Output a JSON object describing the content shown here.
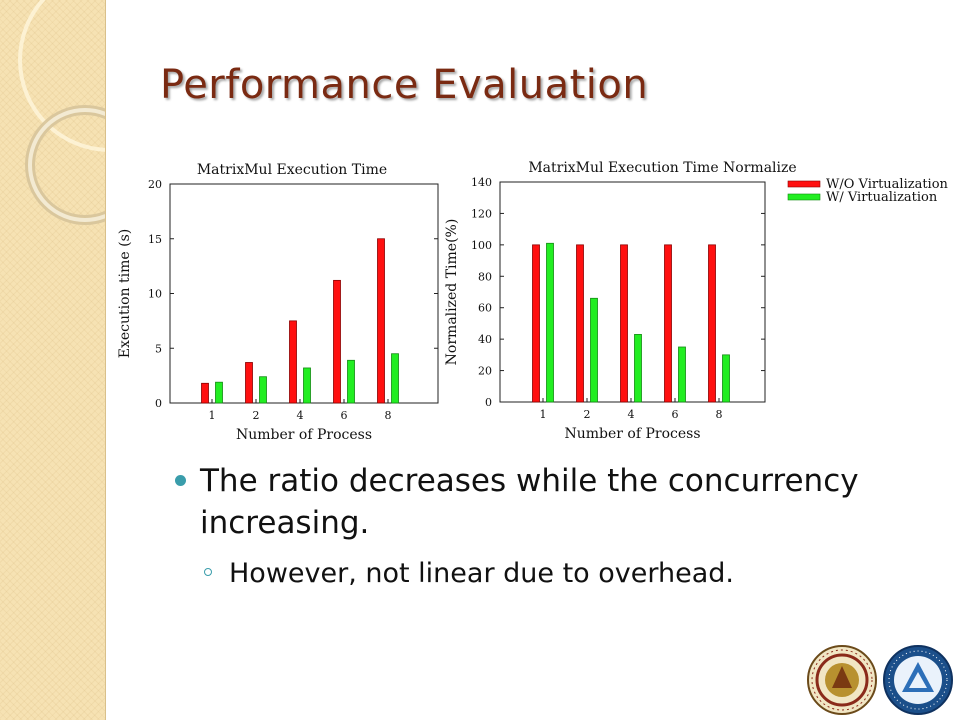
{
  "slide": {
    "title": "Performance Evaluation",
    "bullet_main": "The ratio decreases while the concurrency increasing.",
    "bullet_sub": "However, not linear due to overhead."
  },
  "legend": {
    "items": [
      {
        "label": "W/O Virtualization",
        "color": "#ff1010"
      },
      {
        "label": "W/ Virtualization",
        "color": "#22ee22"
      }
    ]
  },
  "colors": {
    "title": "#7a2a12",
    "bullet": "#3a9dab",
    "series_wo": "#ff1010",
    "series_w": "#22ee22"
  },
  "chart_data": [
    {
      "type": "bar",
      "title": "MatrixMul Execution Time",
      "xlabel": "Number of Process",
      "ylabel": "Execution time (s)",
      "categories": [
        "1",
        "2",
        "4",
        "6",
        "8"
      ],
      "ylim": [
        0,
        20
      ],
      "yticks": [
        0,
        5,
        10,
        15,
        20
      ],
      "series": [
        {
          "name": "W/O Virtualization",
          "values": [
            1.8,
            3.7,
            7.5,
            11.2,
            15.0
          ]
        },
        {
          "name": "W/ Virtualization",
          "values": [
            1.9,
            2.4,
            3.2,
            3.9,
            4.5
          ]
        }
      ]
    },
    {
      "type": "bar",
      "title": "MatrixMul Execution Time Normalize",
      "xlabel": "Number of Process",
      "ylabel": "Normalized Time(%)",
      "categories": [
        "1",
        "2",
        "4",
        "6",
        "8"
      ],
      "ylim": [
        0,
        140
      ],
      "yticks": [
        0,
        20,
        40,
        60,
        80,
        100,
        120,
        140
      ],
      "series": [
        {
          "name": "W/O Virtualization",
          "values": [
            100,
            100,
            100,
            100,
            100
          ]
        },
        {
          "name": "W/ Virtualization",
          "values": [
            101,
            66,
            43,
            35,
            30
          ]
        }
      ]
    }
  ]
}
